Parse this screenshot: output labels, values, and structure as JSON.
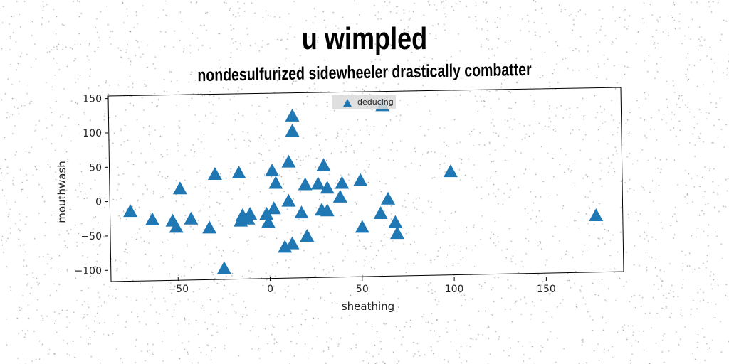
{
  "header": {
    "title": "u wimpled",
    "subtitle": "nondesulfurized sidewheeler drastically combatter"
  },
  "colors": {
    "marker": "#1f77b4",
    "legend_bg": "#d9d9d9"
  },
  "chart_data": {
    "type": "scatter",
    "title": "u wimpled",
    "subtitle": "nondesulfurized sidewheeler drastically combatter",
    "xlabel": "sheathing",
    "ylabel": "mouthwash",
    "xlim": [
      -88,
      192
    ],
    "ylim": [
      -108,
      160
    ],
    "xticks": [
      -50,
      0,
      50,
      100,
      150
    ],
    "yticks": [
      -100,
      -50,
      0,
      50,
      100,
      150
    ],
    "legend": {
      "position": "top-center",
      "entries": [
        "deducing"
      ]
    },
    "grid": false,
    "series": [
      {
        "name": "deducing",
        "marker": "triangle",
        "color": "#1f77b4",
        "points": [
          [
            -76,
            -14
          ],
          [
            -64,
            -26
          ],
          [
            -53,
            -28
          ],
          [
            -51,
            -37
          ],
          [
            -49,
            19
          ],
          [
            -43,
            -25
          ],
          [
            -33,
            -38
          ],
          [
            -30,
            40
          ],
          [
            -25,
            -97
          ],
          [
            -17,
            42
          ],
          [
            -16,
            -28
          ],
          [
            -15,
            -20
          ],
          [
            -12,
            -25
          ],
          [
            -11,
            -18
          ],
          [
            -2,
            -18
          ],
          [
            -1,
            -30
          ],
          [
            1,
            45
          ],
          [
            2,
            -10
          ],
          [
            3,
            27
          ],
          [
            8,
            -66
          ],
          [
            10,
            1
          ],
          [
            10,
            58
          ],
          [
            12,
            -61
          ],
          [
            12,
            125
          ],
          [
            12,
            103
          ],
          [
            17,
            -16
          ],
          [
            19,
            25
          ],
          [
            20,
            -50
          ],
          [
            26,
            26
          ],
          [
            28,
            -12
          ],
          [
            29,
            53
          ],
          [
            31,
            -13
          ],
          [
            31,
            20
          ],
          [
            38,
            7
          ],
          [
            39,
            27
          ],
          [
            49,
            31
          ],
          [
            50,
            -37
          ],
          [
            60,
            -17
          ],
          [
            61,
            140
          ],
          [
            64,
            4
          ],
          [
            68,
            -30
          ],
          [
            69,
            -46
          ],
          [
            98,
            44
          ],
          [
            177,
            -20
          ]
        ]
      }
    ]
  }
}
